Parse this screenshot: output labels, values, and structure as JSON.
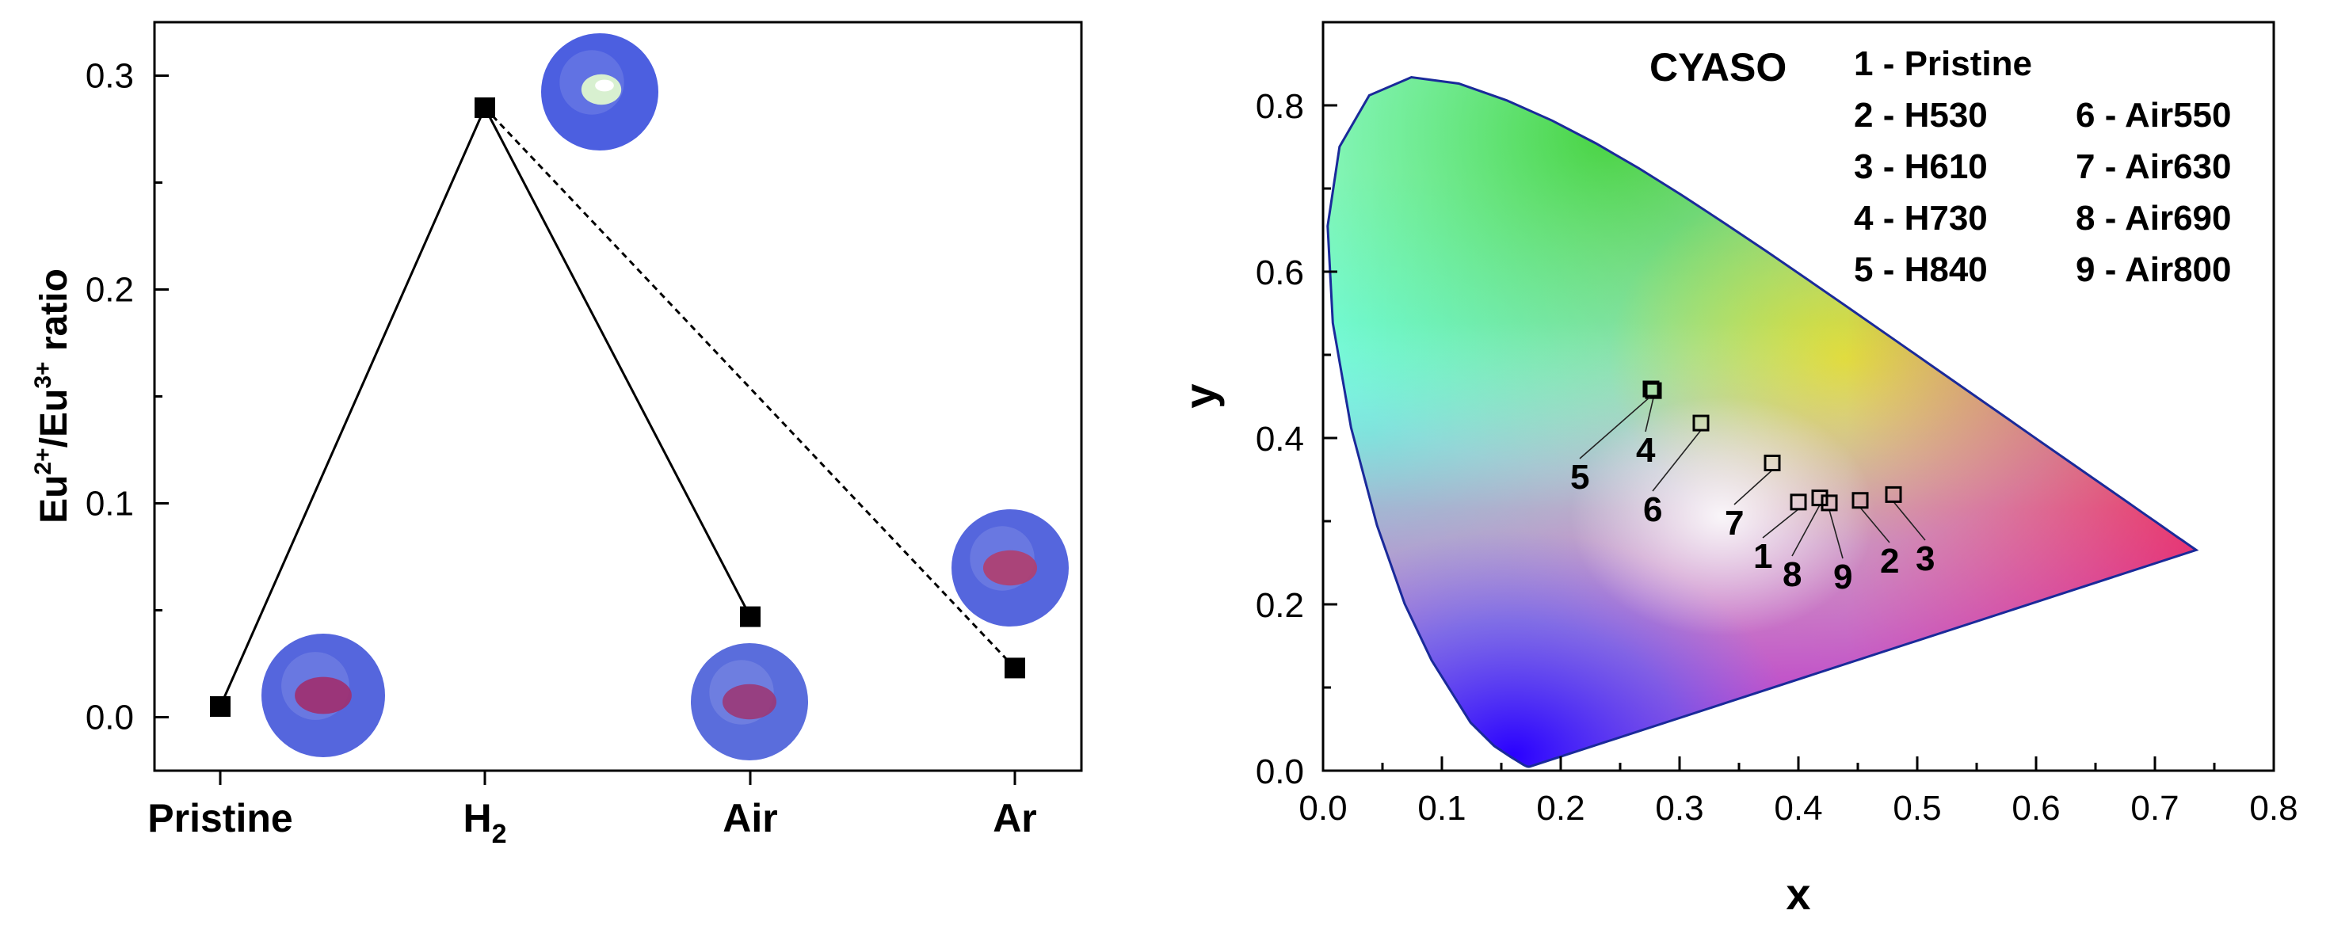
{
  "chart_data": [
    {
      "type": "line",
      "ylabel": "Eu2+/Eu3+ ratio",
      "ylabel_parts": {
        "a": "Eu",
        "a_sup": "2+",
        "sep": "/Eu",
        "b_sup": "3+",
        "tail": " ratio"
      },
      "categories": [
        "Pristine",
        "H",
        "Air",
        "Ar"
      ],
      "category_subscripts": [
        "",
        "2",
        "",
        ""
      ],
      "values": [
        0.005,
        0.285,
        0.047,
        0.023
      ],
      "connections": [
        {
          "from": 0,
          "to": 1,
          "style": "solid"
        },
        {
          "from": 1,
          "to": 2,
          "style": "solid"
        },
        {
          "from": 1,
          "to": 3,
          "style": "dashed"
        }
      ],
      "ylim": [
        -0.025,
        0.325
      ],
      "yticks": [
        "0.0",
        "0.1",
        "0.2",
        "0.3"
      ],
      "sample_photos": [
        {
          "category": 0,
          "appearance": "red-spot",
          "colors": [
            "#5566dd",
            "#a03070"
          ]
        },
        {
          "category": 1,
          "appearance": "white-spot",
          "colors": [
            "#4c5fe0",
            "#d8f0d0"
          ]
        },
        {
          "category": 2,
          "appearance": "red-spot",
          "colors": [
            "#5a6ddc",
            "#9a3a78"
          ]
        },
        {
          "category": 3,
          "appearance": "red-spot",
          "colors": [
            "#5566dd",
            "#b04070"
          ]
        }
      ]
    },
    {
      "type": "scatter",
      "title": "CYASO",
      "xlabel": "x",
      "ylabel": "y",
      "xlim": [
        0.0,
        0.8
      ],
      "ylim": [
        0.0,
        0.9
      ],
      "xticks": [
        "0.0",
        "0.1",
        "0.2",
        "0.3",
        "0.4",
        "0.5",
        "0.6",
        "0.7",
        "0.8"
      ],
      "yticks": [
        "0.0",
        "0.2",
        "0.4",
        "0.6",
        "0.8"
      ],
      "background": "CIE 1931 chromaticity diagram",
      "points": [
        {
          "id": "1",
          "name": "Pristine",
          "x": 0.4,
          "y": 0.323
        },
        {
          "id": "2",
          "name": "H530",
          "x": 0.452,
          "y": 0.325
        },
        {
          "id": "3",
          "name": "H610",
          "x": 0.48,
          "y": 0.332
        },
        {
          "id": "4",
          "name": "H730",
          "x": 0.278,
          "y": 0.457
        },
        {
          "id": "5",
          "name": "H840",
          "x": 0.276,
          "y": 0.459
        },
        {
          "id": "6",
          "name": "Air550",
          "x": 0.318,
          "y": 0.418
        },
        {
          "id": "7",
          "name": "Air630",
          "x": 0.378,
          "y": 0.37
        },
        {
          "id": "8",
          "name": "Air690",
          "x": 0.418,
          "y": 0.328
        },
        {
          "id": "9",
          "name": "Air800",
          "x": 0.426,
          "y": 0.322
        }
      ],
      "legend": [
        "1 - Pristine",
        "2 - H530",
        "3 - H610",
        "4 - H730",
        "5 - H840",
        "6 - Air550",
        "7 - Air630",
        "8 - Air690",
        "9 - Air800"
      ]
    }
  ]
}
